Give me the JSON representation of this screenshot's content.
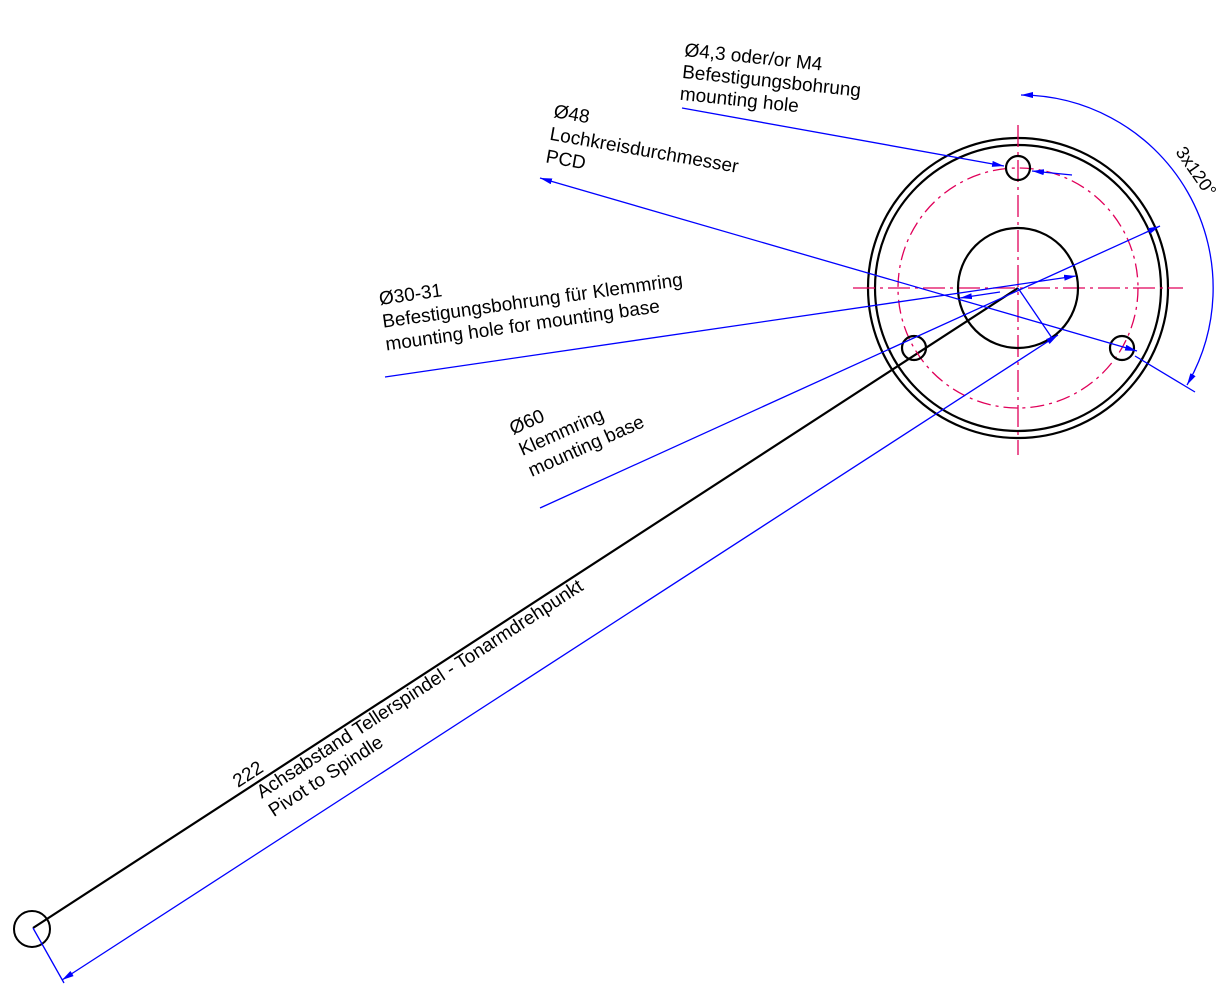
{
  "colors": {
    "outline": "#000000",
    "dimension": "#0000ff",
    "centerline": "#e0005a",
    "background": "#ffffff"
  },
  "labels": {
    "hole": {
      "line1": "Ø4,3 oder/or M4",
      "line2": "Befestigungsbohrung",
      "line3": "mounting hole"
    },
    "pcd": {
      "line1": "Ø48",
      "line2": "Lochkreisdurchmesser",
      "line3": "PCD"
    },
    "clamp_hole": {
      "line1": "Ø30-31",
      "line2": "Befestigungsbohrung für Klemmring",
      "line3": "mounting hole for mounting base"
    },
    "base": {
      "line1": "Ø60",
      "line2": "Klemmring",
      "line3": "mounting base"
    },
    "angle": "3x120°",
    "distance": {
      "value": "222",
      "line1": "Achsabstand Tellerspindel - Tonarmdrehpunkt",
      "line2": "Pivot to Spindle"
    }
  }
}
